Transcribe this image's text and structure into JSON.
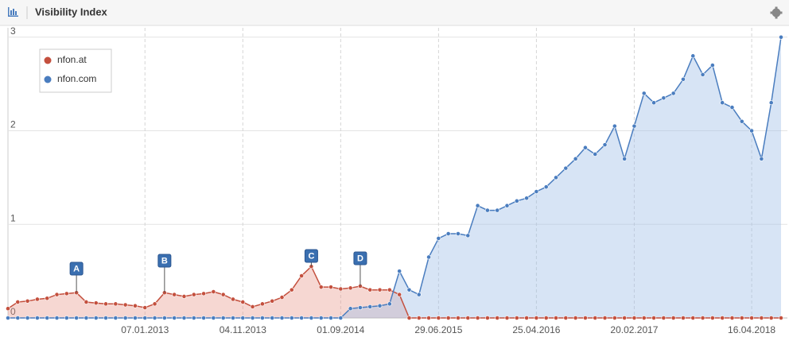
{
  "header": {
    "title": "Visibility Index"
  },
  "chart_data": {
    "type": "line",
    "categories": [
      null,
      null,
      null,
      null,
      null,
      null,
      null,
      null,
      null,
      null,
      null,
      null,
      null,
      null,
      "07.01.2013",
      null,
      null,
      null,
      null,
      null,
      null,
      null,
      null,
      null,
      "04.11.2013",
      null,
      null,
      null,
      null,
      null,
      null,
      null,
      null,
      null,
      "01.09.2014",
      null,
      null,
      null,
      null,
      null,
      null,
      null,
      null,
      null,
      "29.06.2015",
      null,
      null,
      null,
      null,
      null,
      null,
      null,
      null,
      null,
      "25.04.2016",
      null,
      null,
      null,
      null,
      null,
      null,
      null,
      null,
      null,
      "20.02.2017",
      null,
      null,
      null,
      null,
      null,
      null,
      null,
      null,
      null,
      null,
      null,
      "16.04.2018",
      null,
      null,
      null
    ],
    "series": [
      {
        "name": "nfon.at",
        "color": "#c4503e",
        "fill": "rgba(232,150,138,0.38)",
        "values": [
          0.1,
          0.17,
          0.18,
          0.2,
          0.21,
          0.25,
          0.26,
          0.27,
          0.17,
          0.16,
          0.15,
          0.15,
          0.14,
          0.13,
          0.11,
          0.15,
          0.27,
          0.25,
          0.23,
          0.25,
          0.26,
          0.28,
          0.25,
          0.2,
          0.17,
          0.12,
          0.15,
          0.18,
          0.22,
          0.3,
          0.45,
          0.55,
          0.33,
          0.33,
          0.31,
          0.32,
          0.34,
          0.3,
          0.3,
          0.3,
          0.25,
          0,
          0,
          0,
          0,
          0,
          0,
          0,
          0,
          0,
          0,
          0,
          0,
          0,
          0,
          0,
          0,
          0,
          0,
          0,
          0,
          0,
          0,
          0,
          0,
          0,
          0,
          0,
          0,
          0,
          0,
          0,
          0,
          0,
          0,
          0,
          0,
          0,
          0,
          0
        ]
      },
      {
        "name": "nfon.com",
        "color": "#4a7dbf",
        "fill": "rgba(160,190,232,0.42)",
        "values": [
          0,
          0,
          0,
          0,
          0,
          0,
          0,
          0,
          0,
          0,
          0,
          0,
          0,
          0,
          0,
          0,
          0,
          0,
          0,
          0,
          0,
          0,
          0,
          0,
          0,
          0,
          0,
          0,
          0,
          0,
          0,
          0,
          0,
          0,
          0,
          0.1,
          0.11,
          0.12,
          0.13,
          0.15,
          0.5,
          0.3,
          0.25,
          0.65,
          0.85,
          0.9,
          0.9,
          0.88,
          1.2,
          1.15,
          1.15,
          1.2,
          1.25,
          1.28,
          1.35,
          1.4,
          1.5,
          1.6,
          1.7,
          1.82,
          1.75,
          1.85,
          2.05,
          1.7,
          2.05,
          2.4,
          2.3,
          2.35,
          2.4,
          2.55,
          2.8,
          2.6,
          2.7,
          2.3,
          2.25,
          2.1,
          2.0,
          1.7,
          2.3,
          3.0
        ]
      }
    ],
    "ylim": [
      0,
      3.1
    ],
    "yticks": [
      0,
      1,
      2,
      3
    ],
    "grid": true,
    "legend": "top-left",
    "annotations": [
      "A",
      "B",
      "C",
      "D"
    ]
  }
}
